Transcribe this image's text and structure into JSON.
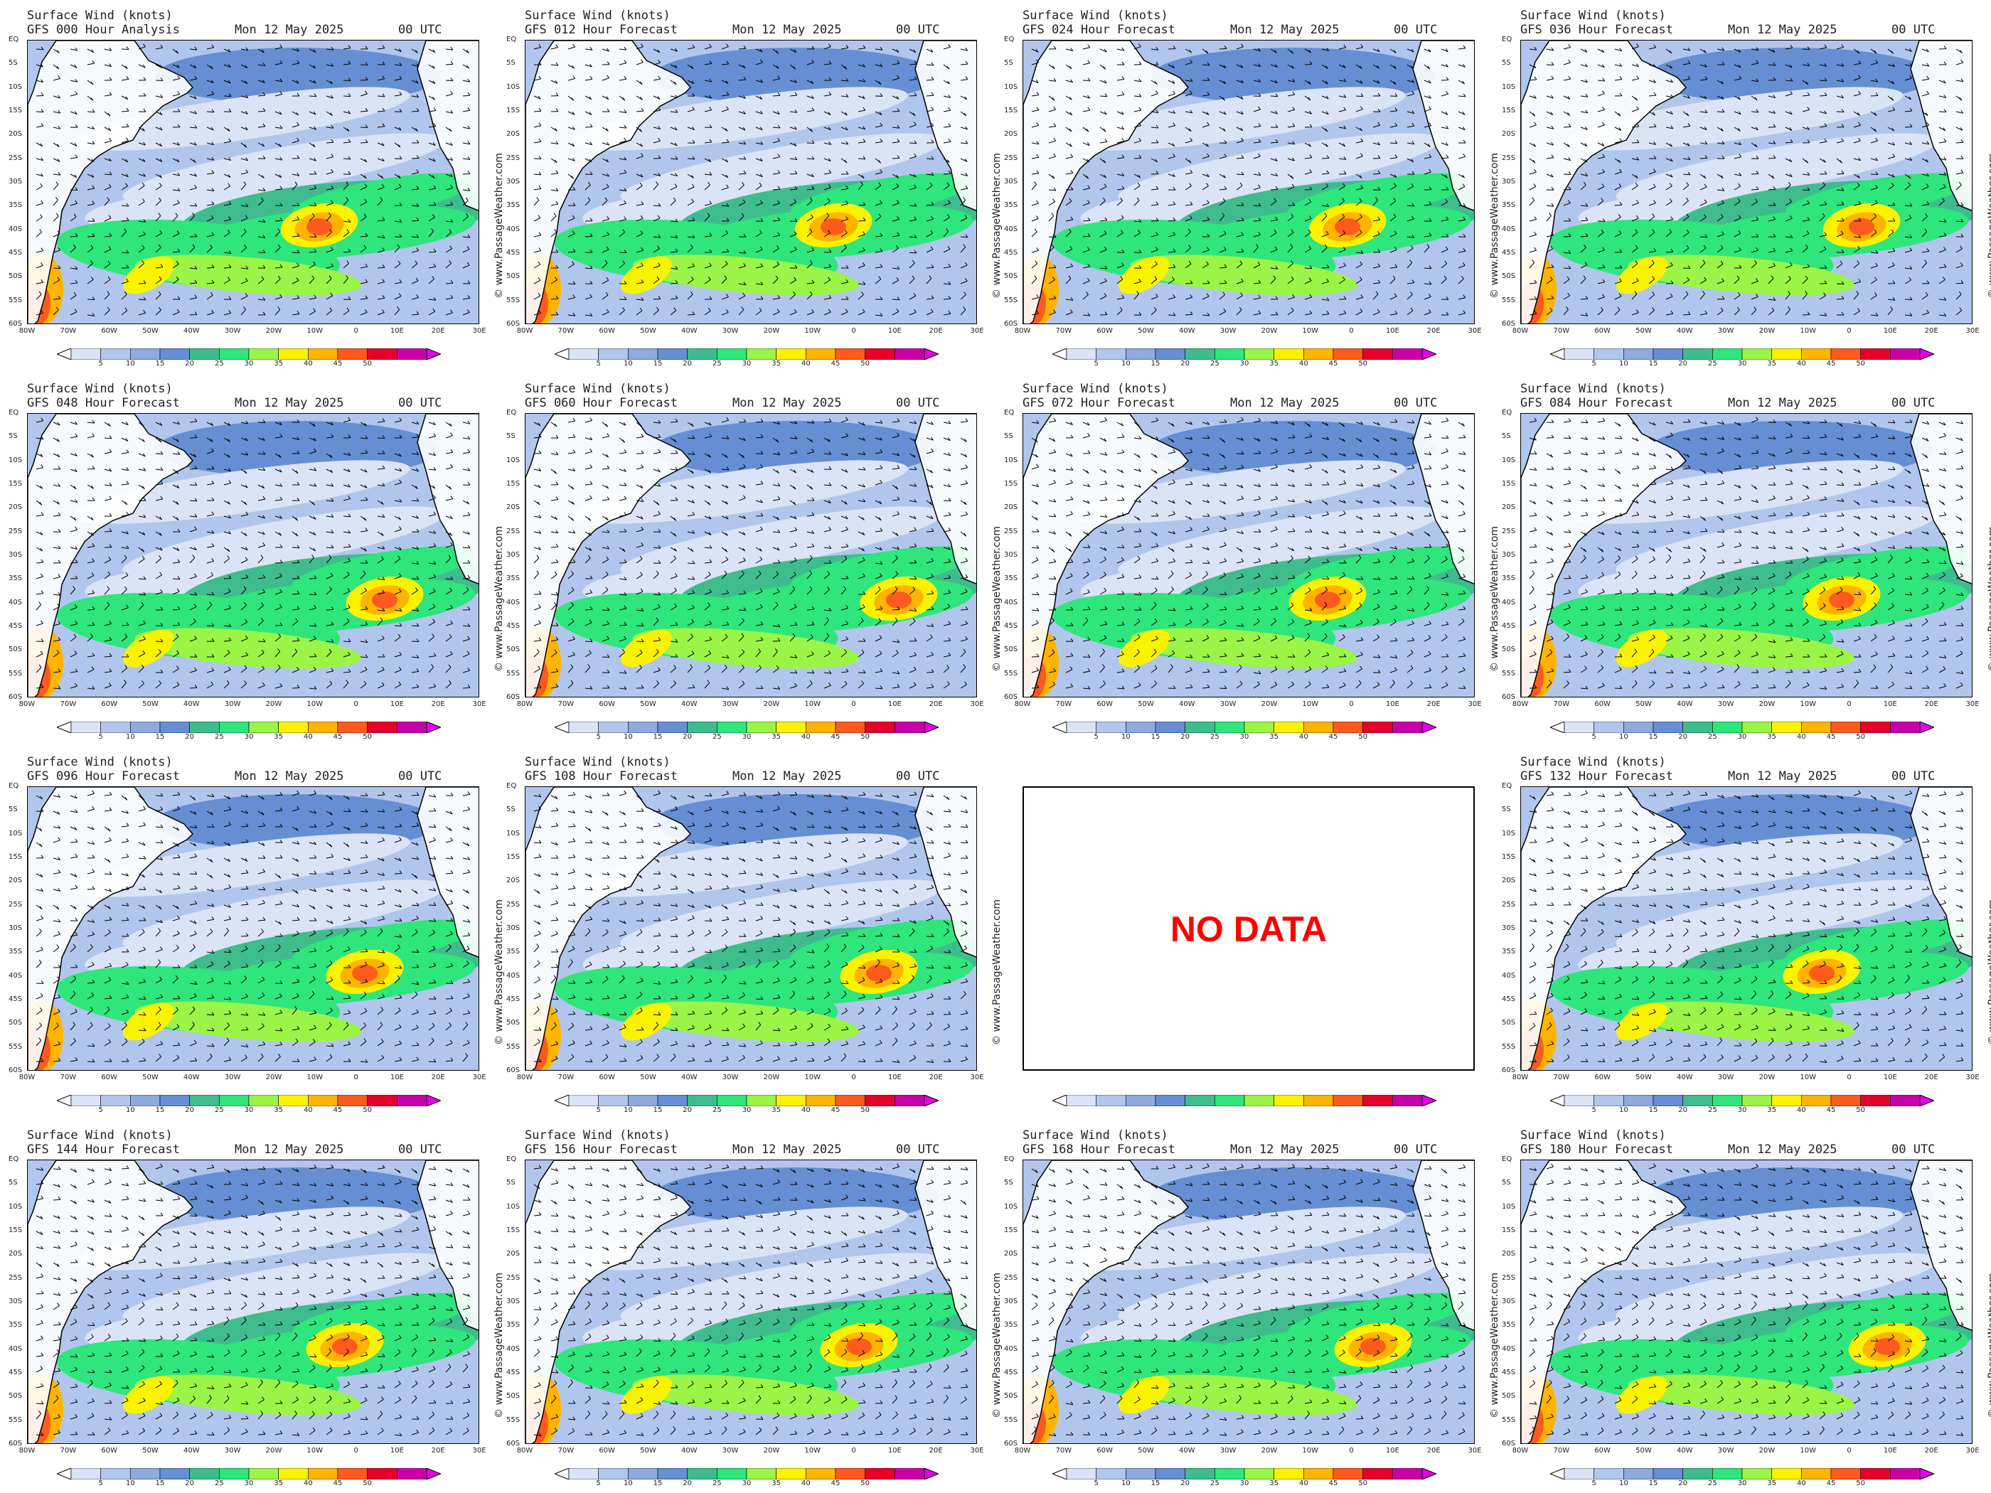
{
  "panels": [
    {
      "title": "Surface Wind (knots)",
      "run": "GFS 000 Hour Analysis",
      "date": "Mon 12 May 2025",
      "time": "00 UTC",
      "status": "data"
    },
    {
      "title": "Surface Wind (knots)",
      "run": "GFS 012 Hour Forecast",
      "date": "Mon 12 May 2025",
      "time": "00 UTC",
      "status": "data"
    },
    {
      "title": "Surface Wind (knots)",
      "run": "GFS 024 Hour Forecast",
      "date": "Mon 12 May 2025",
      "time": "00 UTC",
      "status": "data"
    },
    {
      "title": "Surface Wind (knots)",
      "run": "GFS 036 Hour Forecast",
      "date": "Mon 12 May 2025",
      "time": "00 UTC",
      "status": "data"
    },
    {
      "title": "Surface Wind (knots)",
      "run": "GFS 048 Hour Forecast",
      "date": "Mon 12 May 2025",
      "time": "00 UTC",
      "status": "data"
    },
    {
      "title": "Surface Wind (knots)",
      "run": "GFS 060 Hour Forecast",
      "date": "Mon 12 May 2025",
      "time": "00 UTC",
      "status": "data"
    },
    {
      "title": "Surface Wind (knots)",
      "run": "GFS 072 Hour Forecast",
      "date": "Mon 12 May 2025",
      "time": "00 UTC",
      "status": "data"
    },
    {
      "title": "Surface Wind (knots)",
      "run": "GFS 084 Hour Forecast",
      "date": "Mon 12 May 2025",
      "time": "00 UTC",
      "status": "data"
    },
    {
      "title": "Surface Wind (knots)",
      "run": "GFS 096 Hour Forecast",
      "date": "Mon 12 May 2025",
      "time": "00 UTC",
      "status": "data"
    },
    {
      "title": "Surface Wind (knots)",
      "run": "GFS 108 Hour Forecast",
      "date": "Mon 12 May 2025",
      "time": "00 UTC",
      "status": "data"
    },
    {
      "title": "",
      "run": "",
      "date": "",
      "time": "",
      "status": "nodata"
    },
    {
      "title": "Surface Wind (knots)",
      "run": "GFS 132 Hour Forecast",
      "date": "Mon 12 May 2025",
      "time": "00 UTC",
      "status": "data"
    },
    {
      "title": "Surface Wind (knots)",
      "run": "GFS 144 Hour Forecast",
      "date": "Mon 12 May 2025",
      "time": "00 UTC",
      "status": "data"
    },
    {
      "title": "Surface Wind (knots)",
      "run": "GFS 156 Hour Forecast",
      "date": "Mon 12 May 2025",
      "time": "00 UTC",
      "status": "data"
    },
    {
      "title": "Surface Wind (knots)",
      "run": "GFS 168 Hour Forecast",
      "date": "Mon 12 May 2025",
      "time": "00 UTC",
      "status": "data"
    },
    {
      "title": "Surface Wind (knots)",
      "run": "GFS 180 Hour Forecast",
      "date": "Mon 12 May 2025",
      "time": "00 UTC",
      "status": "data"
    }
  ],
  "no_data_text": "NO DATA",
  "credit": "© www.PassageWeather.com",
  "lat_labels": [
    "EQ",
    "5S",
    "10S",
    "15S",
    "20S",
    "25S",
    "30S",
    "35S",
    "40S",
    "45S",
    "50S",
    "55S",
    "60S"
  ],
  "lon_labels": [
    "80W",
    "70W",
    "60W",
    "50W",
    "40W",
    "30W",
    "20W",
    "10W",
    "0",
    "10E",
    "20E",
    "30E"
  ],
  "colorbar": {
    "ticks": [
      "5",
      "10",
      "15",
      "20",
      "25",
      "30",
      "35",
      "40",
      "45",
      "50"
    ],
    "colors": [
      "#ffffff",
      "#dbe3f6",
      "#b1c6ec",
      "#8eaade",
      "#668ed3",
      "#3fbc8e",
      "#2ee67b",
      "#9af546",
      "#fbf200",
      "#ffb400",
      "#ff5a1e",
      "#e6002a",
      "#c800aa",
      "#e800e8"
    ]
  }
}
